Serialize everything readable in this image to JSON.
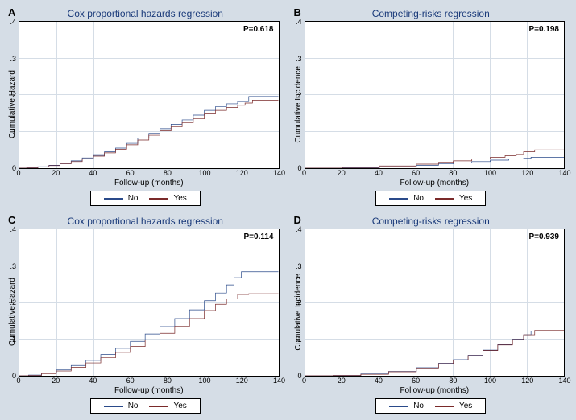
{
  "figure": {
    "background_color": "#d5dde6",
    "panel_background_color": "#ffffff",
    "grid_color": "#d5dde6",
    "font_family": "Arial",
    "title_color": "#1a3a7a",
    "title_fontsize": 12,
    "label_fontsize": 10,
    "tick_fontsize": 9,
    "pvalue_fontsize": 10,
    "series_colors": {
      "no": "#2a4a8a",
      "yes": "#7a2a2a"
    },
    "legend": {
      "items": [
        {
          "key": "no",
          "label": "No"
        },
        {
          "key": "yes",
          "label": "Yes"
        }
      ]
    },
    "x": {
      "label": "Follow-up (months)",
      "min": 0,
      "max": 140,
      "ticks": [
        0,
        20,
        40,
        60,
        80,
        100,
        120,
        140
      ]
    },
    "y": {
      "min": 0,
      "max": 0.4,
      "ticks": [
        0,
        0.1,
        0.2,
        0.3,
        0.4
      ],
      "tick_labels": [
        "0",
        ".1",
        ".2",
        ".3",
        ".4"
      ]
    }
  },
  "panels": {
    "A": {
      "letter": "A",
      "title": "Cox proportional hazards regression",
      "ylabel": "Cumulative Hazard",
      "pvalue": "P=0.618",
      "series": {
        "no": [
          [
            0,
            0
          ],
          [
            4,
            0.001
          ],
          [
            10,
            0.004
          ],
          [
            16,
            0.008
          ],
          [
            22,
            0.013
          ],
          [
            28,
            0.02
          ],
          [
            34,
            0.028
          ],
          [
            40,
            0.035
          ],
          [
            46,
            0.045
          ],
          [
            52,
            0.055
          ],
          [
            58,
            0.068
          ],
          [
            64,
            0.082
          ],
          [
            70,
            0.095
          ],
          [
            76,
            0.108
          ],
          [
            82,
            0.12
          ],
          [
            88,
            0.132
          ],
          [
            94,
            0.145
          ],
          [
            100,
            0.158
          ],
          [
            106,
            0.168
          ],
          [
            112,
            0.176
          ],
          [
            118,
            0.182
          ],
          [
            124,
            0.196
          ],
          [
            126,
            0.196
          ],
          [
            140,
            0.196
          ]
        ],
        "yes": [
          [
            0,
            0
          ],
          [
            4,
            0.001
          ],
          [
            10,
            0.003
          ],
          [
            16,
            0.007
          ],
          [
            22,
            0.012
          ],
          [
            28,
            0.018
          ],
          [
            34,
            0.026
          ],
          [
            40,
            0.033
          ],
          [
            46,
            0.042
          ],
          [
            52,
            0.052
          ],
          [
            58,
            0.064
          ],
          [
            64,
            0.077
          ],
          [
            70,
            0.09
          ],
          [
            76,
            0.102
          ],
          [
            82,
            0.113
          ],
          [
            88,
            0.124
          ],
          [
            94,
            0.135
          ],
          [
            100,
            0.148
          ],
          [
            106,
            0.158
          ],
          [
            112,
            0.166
          ],
          [
            118,
            0.172
          ],
          [
            122,
            0.178
          ],
          [
            126,
            0.186
          ],
          [
            140,
            0.186
          ]
        ]
      }
    },
    "B": {
      "letter": "B",
      "title": "Competing-risks regression",
      "ylabel": "Cumulative Incidence",
      "pvalue": "P=0.198",
      "series": {
        "no": [
          [
            0,
            0
          ],
          [
            20,
            0.001
          ],
          [
            40,
            0.004
          ],
          [
            60,
            0.008
          ],
          [
            72,
            0.012
          ],
          [
            80,
            0.014
          ],
          [
            90,
            0.018
          ],
          [
            100,
            0.022
          ],
          [
            110,
            0.025
          ],
          [
            118,
            0.027
          ],
          [
            122,
            0.03
          ],
          [
            140,
            0.03
          ]
        ],
        "yes": [
          [
            0,
            0
          ],
          [
            20,
            0.002
          ],
          [
            40,
            0.006
          ],
          [
            60,
            0.011
          ],
          [
            72,
            0.016
          ],
          [
            80,
            0.02
          ],
          [
            90,
            0.025
          ],
          [
            100,
            0.03
          ],
          [
            108,
            0.034
          ],
          [
            114,
            0.037
          ],
          [
            118,
            0.045
          ],
          [
            124,
            0.05
          ],
          [
            140,
            0.05
          ]
        ]
      }
    },
    "C": {
      "letter": "C",
      "title": "Cox proportional hazards regression",
      "ylabel": "Cumulative Hazard",
      "pvalue": "P=0.114",
      "series": {
        "no": [
          [
            0,
            0
          ],
          [
            5,
            0.002
          ],
          [
            12,
            0.008
          ],
          [
            20,
            0.016
          ],
          [
            28,
            0.028
          ],
          [
            36,
            0.042
          ],
          [
            44,
            0.058
          ],
          [
            52,
            0.075
          ],
          [
            60,
            0.094
          ],
          [
            68,
            0.114
          ],
          [
            76,
            0.134
          ],
          [
            84,
            0.156
          ],
          [
            92,
            0.18
          ],
          [
            100,
            0.205
          ],
          [
            106,
            0.226
          ],
          [
            112,
            0.248
          ],
          [
            116,
            0.268
          ],
          [
            120,
            0.284
          ],
          [
            122,
            0.284
          ],
          [
            140,
            0.284
          ]
        ],
        "yes": [
          [
            0,
            0
          ],
          [
            5,
            0.001
          ],
          [
            12,
            0.006
          ],
          [
            20,
            0.013
          ],
          [
            28,
            0.023
          ],
          [
            36,
            0.035
          ],
          [
            44,
            0.049
          ],
          [
            52,
            0.064
          ],
          [
            60,
            0.08
          ],
          [
            68,
            0.098
          ],
          [
            76,
            0.116
          ],
          [
            84,
            0.135
          ],
          [
            92,
            0.156
          ],
          [
            100,
            0.178
          ],
          [
            106,
            0.195
          ],
          [
            112,
            0.21
          ],
          [
            118,
            0.222
          ],
          [
            124,
            0.224
          ],
          [
            140,
            0.224
          ]
        ]
      }
    },
    "D": {
      "letter": "D",
      "title": "Competing-risks regression",
      "ylabel": "Cumulative Incidence",
      "pvalue": "P=0.939",
      "series": {
        "no": [
          [
            0,
            0
          ],
          [
            15,
            0.001
          ],
          [
            30,
            0.005
          ],
          [
            45,
            0.012
          ],
          [
            60,
            0.022
          ],
          [
            72,
            0.034
          ],
          [
            80,
            0.044
          ],
          [
            88,
            0.056
          ],
          [
            96,
            0.07
          ],
          [
            104,
            0.085
          ],
          [
            112,
            0.1
          ],
          [
            118,
            0.112
          ],
          [
            122,
            0.122
          ],
          [
            140,
            0.122
          ]
        ],
        "yes": [
          [
            0,
            0
          ],
          [
            15,
            0.001
          ],
          [
            30,
            0.004
          ],
          [
            45,
            0.011
          ],
          [
            60,
            0.021
          ],
          [
            72,
            0.033
          ],
          [
            80,
            0.043
          ],
          [
            88,
            0.055
          ],
          [
            96,
            0.069
          ],
          [
            104,
            0.084
          ],
          [
            112,
            0.099
          ],
          [
            118,
            0.112
          ],
          [
            124,
            0.124
          ],
          [
            140,
            0.124
          ]
        ]
      }
    }
  }
}
